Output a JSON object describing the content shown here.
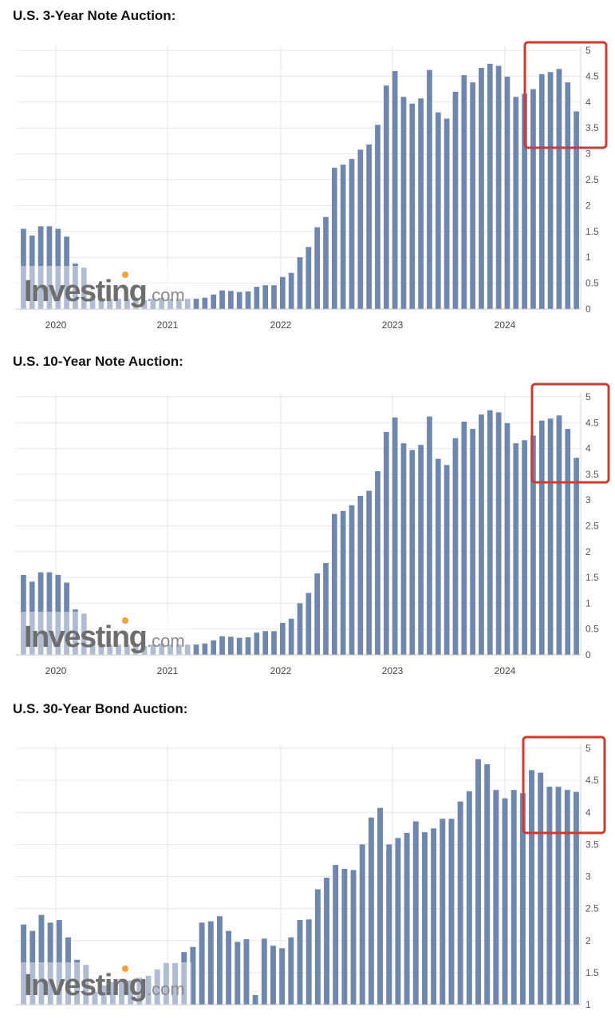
{
  "charts": [
    {
      "title": "U.S. 3-Year Note Auction:"
    },
    {
      "title": "U.S. 10-Year Note Auction:"
    },
    {
      "title": "U.S. 30-Year Bond Auction:"
    }
  ],
  "watermark": {
    "brand": "Investing",
    "suffix": ".com"
  },
  "colors": {
    "bar": "#6f86ad",
    "grid": "#e6e6e6",
    "highlight": "#d03a32"
  },
  "chart_data": [
    {
      "type": "bar",
      "title": "U.S. 3-Year Note Auction:",
      "x_tick_labels": [
        "2020",
        "2021",
        "2022",
        "2023",
        "2024"
      ],
      "y_tick_labels": [
        "0",
        "0.5",
        "1",
        "1.5",
        "2",
        "2.5",
        "3",
        "3.5",
        "4",
        "4.5",
        "5"
      ],
      "ylim": [
        0,
        5
      ],
      "grid": true,
      "highlight": "last five bars boxed in red",
      "values": [
        1.55,
        1.42,
        1.6,
        1.6,
        1.55,
        1.4,
        0.88,
        0.8,
        0.25,
        0.2,
        0.2,
        0.2,
        0.2,
        0.18,
        0.17,
        0.2,
        0.22,
        0.2,
        0.2,
        0.2,
        0.2,
        0.22,
        0.28,
        0.36,
        0.35,
        0.33,
        0.34,
        0.43,
        0.46,
        0.46,
        0.62,
        0.7,
        1.0,
        1.2,
        1.58,
        1.78,
        2.73,
        2.79,
        2.9,
        3.08,
        3.18,
        3.56,
        4.32,
        4.6,
        4.1,
        3.97,
        4.07,
        4.62,
        3.8,
        3.68,
        4.2,
        4.52,
        4.38,
        4.66,
        4.74,
        4.7,
        4.49,
        4.1,
        4.16,
        4.25,
        4.54,
        4.58,
        4.64,
        4.38,
        3.82
      ]
    },
    {
      "type": "bar",
      "title": "U.S. 10-Year Note Auction:",
      "x_tick_labels": [
        "2020",
        "2021",
        "2022",
        "2023",
        "2024"
      ],
      "y_tick_labels": [
        "0",
        "0.5",
        "1",
        "1.5",
        "2",
        "2.5",
        "3",
        "3.5",
        "4",
        "4.5",
        "5"
      ],
      "ylim": [
        0,
        5
      ],
      "grid": true,
      "highlight": "last five bars boxed in red",
      "values": [
        1.55,
        1.42,
        1.6,
        1.6,
        1.55,
        1.4,
        0.88,
        0.8,
        0.25,
        0.2,
        0.2,
        0.2,
        0.2,
        0.18,
        0.17,
        0.2,
        0.22,
        0.2,
        0.2,
        0.2,
        0.2,
        0.22,
        0.28,
        0.36,
        0.35,
        0.33,
        0.34,
        0.43,
        0.46,
        0.46,
        0.62,
        0.7,
        1.0,
        1.2,
        1.58,
        1.78,
        2.73,
        2.79,
        2.9,
        3.08,
        3.18,
        3.56,
        4.32,
        4.6,
        4.1,
        3.97,
        4.07,
        4.62,
        3.8,
        3.68,
        4.2,
        4.52,
        4.38,
        4.66,
        4.74,
        4.7,
        4.49,
        4.1,
        4.16,
        4.25,
        4.54,
        4.58,
        4.64,
        4.38,
        3.82
      ]
    },
    {
      "type": "bar",
      "title": "U.S. 30-Year Bond Auction:",
      "x_tick_labels": [],
      "y_tick_labels": [
        "1",
        "1.5",
        "2",
        "2.5",
        "3",
        "3.5",
        "4",
        "4.5",
        "5"
      ],
      "ylim": [
        1,
        5
      ],
      "grid": true,
      "highlight": "last five bars boxed in red",
      "values": [
        2.25,
        2.15,
        2.4,
        2.28,
        2.32,
        2.05,
        1.7,
        1.62,
        1.2,
        1.3,
        1.35,
        1.4,
        1.38,
        1.42,
        1.45,
        1.55,
        1.65,
        1.65,
        1.82,
        1.9,
        2.28,
        2.3,
        2.38,
        2.15,
        1.98,
        2.02,
        1.15,
        2.03,
        1.92,
        1.88,
        2.05,
        2.32,
        2.33,
        2.8,
        2.98,
        3.18,
        3.12,
        3.1,
        3.5,
        3.92,
        4.07,
        3.5,
        3.6,
        3.68,
        3.86,
        3.69,
        3.75,
        3.9,
        3.9,
        4.17,
        4.33,
        4.83,
        4.75,
        4.35,
        4.22,
        4.35,
        4.3,
        4.66,
        4.62,
        4.4,
        4.4,
        4.35,
        4.32
      ]
    }
  ]
}
